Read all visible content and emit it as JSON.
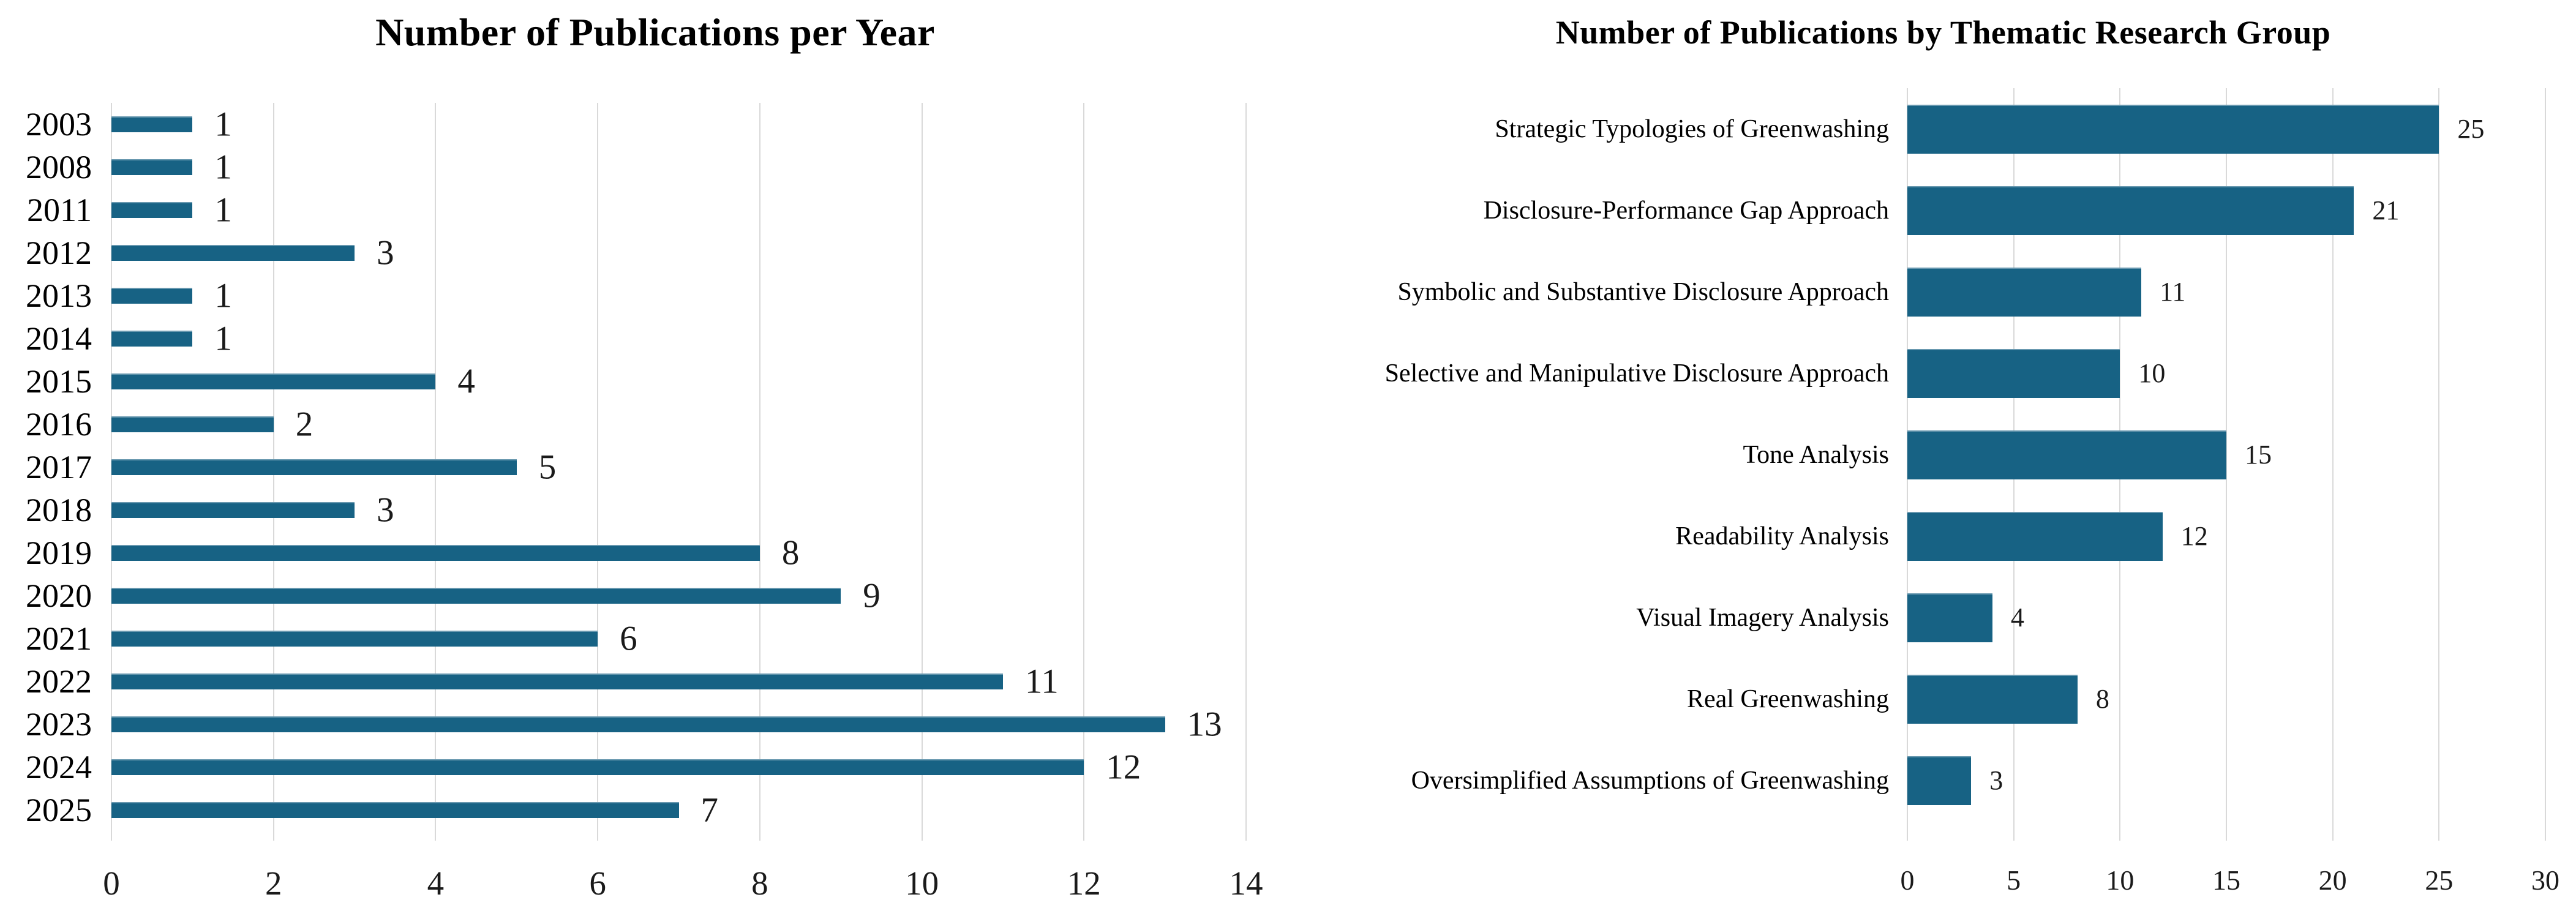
{
  "figure": {
    "background": "#ffffff",
    "bar_color": "#176284",
    "gridline_color": "#d9d9d9",
    "text_color": "#000000"
  },
  "chart_data": [
    {
      "type": "bar",
      "orientation": "horizontal",
      "title": "Number of Publications per Year",
      "xlabel": "",
      "ylabel": "",
      "categories": [
        "2003",
        "2008",
        "2011",
        "2012",
        "2013",
        "2014",
        "2015",
        "2016",
        "2017",
        "2018",
        "2019",
        "2020",
        "2021",
        "2022",
        "2023",
        "2024",
        "2025"
      ],
      "values": [
        1,
        1,
        1,
        3,
        1,
        1,
        4,
        2,
        5,
        3,
        8,
        9,
        6,
        11,
        13,
        12,
        7
      ],
      "xlim": [
        0,
        14
      ],
      "xticks": [
        0,
        2,
        4,
        6,
        8,
        10,
        12,
        14
      ],
      "grid": true,
      "data_labels": true,
      "legend": "none"
    },
    {
      "type": "bar",
      "orientation": "horizontal",
      "title": "Number of Publications by Thematic Research Group",
      "xlabel": "",
      "ylabel": "",
      "categories": [
        "Strategic Typologies of Greenwashing",
        "Disclosure-Performance Gap Approach",
        "Symbolic and Substantive Disclosure Approach",
        "Selective and Manipulative Disclosure Approach",
        "Tone Analysis",
        "Readability Analysis",
        "Visual Imagery Analysis",
        "Real Greenwashing",
        "Oversimplified Assumptions of Greenwashing"
      ],
      "values": [
        25,
        21,
        11,
        10,
        15,
        12,
        4,
        8,
        3
      ],
      "xlim": [
        0,
        30
      ],
      "xticks": [
        0,
        5,
        10,
        15,
        20,
        25,
        30
      ],
      "grid": true,
      "data_labels": true,
      "legend": "none"
    }
  ]
}
